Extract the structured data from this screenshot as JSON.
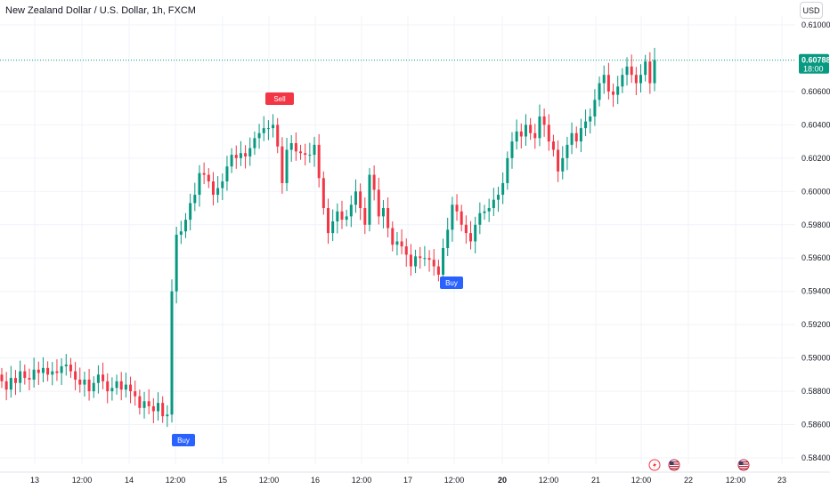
{
  "header": {
    "title": "New Zealand Dollar / U.S. Dollar, 1h, FXCM",
    "currency_button": "USD"
  },
  "colors": {
    "up": "#089981",
    "down": "#f23645",
    "buy": "#2962ff",
    "sell": "#f23645",
    "grid": "#f0f3fa",
    "axis_text": "#131722"
  },
  "chart_data": {
    "type": "candlestick",
    "title": "New Zealand Dollar / U.S. Dollar, 1h, FXCM",
    "ylim": [
      0.5835,
      0.6107
    ],
    "y_ticks": [
      "0.61000",
      "0.60600",
      "0.60400",
      "0.60200",
      "0.60000",
      "0.59800",
      "0.59600",
      "0.59400",
      "0.59200",
      "0.59000",
      "0.58800",
      "0.58600",
      "0.58400"
    ],
    "x_ticks": [
      "13",
      "12:00",
      "14",
      "12:00",
      "15",
      "12:00",
      "16",
      "12:00",
      "17",
      "12:00",
      "20",
      "12:00",
      "21",
      "12:00",
      "22",
      "12:00",
      "23"
    ],
    "last_price": {
      "value": "0.60788",
      "countdown": "18:00"
    },
    "close_series": [
      0.5886,
      0.5881,
      0.5888,
      0.5885,
      0.5892,
      0.5888,
      0.5887,
      0.5893,
      0.5891,
      0.5894,
      0.589,
      0.5892,
      0.5891,
      0.5895,
      0.5896,
      0.5892,
      0.5887,
      0.5884,
      0.5887,
      0.588,
      0.5885,
      0.589,
      0.5886,
      0.588,
      0.5882,
      0.5886,
      0.5881,
      0.5884,
      0.588,
      0.5877,
      0.587,
      0.5874,
      0.5871,
      0.5868,
      0.5873,
      0.5865,
      0.5866,
      0.594,
      0.5974,
      0.5976,
      0.5983,
      0.5993,
      0.5998,
      0.6011,
      0.601,
      0.6006,
      0.5998,
      0.6002,
      0.6006,
      0.6015,
      0.6022,
      0.602,
      0.6023,
      0.6021,
      0.6026,
      0.6032,
      0.6035,
      0.6038,
      0.6038,
      0.604,
      0.6027,
      0.6005,
      0.6025,
      0.6029,
      0.6024,
      0.6023,
      0.6022,
      0.6022,
      0.6028,
      0.6008,
      0.599,
      0.5975,
      0.5982,
      0.5988,
      0.5983,
      0.5985,
      0.5992,
      0.6,
      0.599,
      0.598,
      0.601,
      0.6001,
      0.5985,
      0.599,
      0.5978,
      0.5968,
      0.597,
      0.5967,
      0.5962,
      0.5955,
      0.5961,
      0.596,
      0.596,
      0.5959,
      0.5955,
      0.595,
      0.5966,
      0.5977,
      0.5992,
      0.5988,
      0.598,
      0.5975,
      0.597,
      0.598,
      0.5987,
      0.5988,
      0.599,
      0.5995,
      0.5998,
      0.6005,
      0.602,
      0.603,
      0.6036,
      0.6033,
      0.604,
      0.6035,
      0.6032,
      0.6045,
      0.604,
      0.603,
      0.6025,
      0.6012,
      0.602,
      0.6028,
      0.6035,
      0.603,
      0.6038,
      0.6042,
      0.6045,
      0.6055,
      0.6065,
      0.607,
      0.606,
      0.6058,
      0.6063,
      0.607,
      0.6075,
      0.607,
      0.6065,
      0.607,
      0.6078,
      0.6065,
      0.6079
    ],
    "annotations": [
      {
        "label": "Buy",
        "kind": "buy",
        "at": "12:00 (13 → 14 span, after 14)"
      },
      {
        "label": "Sell",
        "kind": "sell",
        "at": "15 12:00"
      },
      {
        "label": "Buy",
        "kind": "buy",
        "at": "17 ~13:00"
      }
    ],
    "events": [
      "lightning-event",
      "us-flag-event",
      "us-flag-event"
    ]
  }
}
